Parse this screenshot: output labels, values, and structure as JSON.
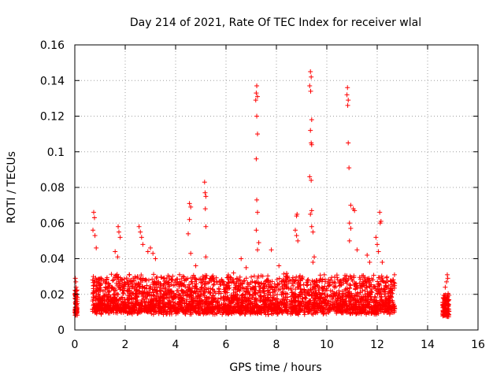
{
  "chart_data": {
    "type": "scatter",
    "title": "Day 214 of 2021, Rate Of TEC Index for receiver wlal",
    "xlabel": "GPS time / hours",
    "ylabel": "ROTI / TECUs",
    "xlim": [
      0,
      16
    ],
    "ylim": [
      0,
      0.16
    ],
    "xticks": [
      0,
      2,
      4,
      6,
      8,
      10,
      12,
      14,
      16
    ],
    "yticks": [
      0,
      0.02,
      0.04,
      0.06,
      0.08,
      0.1,
      0.12,
      0.14,
      0.16
    ],
    "xtick_labels": [
      "0",
      "2",
      "4",
      "6",
      "8",
      "10",
      "12",
      "14",
      "16"
    ],
    "ytick_labels": [
      "0",
      "0.02",
      "0.04",
      "0.06",
      "0.08",
      "0.1",
      "0.12",
      "0.14",
      "0.16"
    ],
    "grid": true,
    "marker": "+",
    "color": "#ff0000",
    "series": [
      {
        "name": "ROTI",
        "segments": [
          {
            "x_start": 0.0,
            "x_end": 0.1,
            "median": 0.01,
            "spread": 0.01
          },
          {
            "x_start": 0.7,
            "x_end": 12.7,
            "median": 0.012,
            "spread": 0.015
          },
          {
            "x_start": 14.6,
            "x_end": 14.85,
            "median": 0.009,
            "spread": 0.008
          }
        ],
        "notable_points": [
          {
            "x": 0.02,
            "y": 0.029
          },
          {
            "x": 0.04,
            "y": 0.027
          },
          {
            "x": 0.05,
            "y": 0.024
          },
          {
            "x": 0.75,
            "y": 0.066
          },
          {
            "x": 0.78,
            "y": 0.063
          },
          {
            "x": 0.72,
            "y": 0.056
          },
          {
            "x": 0.8,
            "y": 0.053
          },
          {
            "x": 0.85,
            "y": 0.046
          },
          {
            "x": 1.6,
            "y": 0.044
          },
          {
            "x": 1.7,
            "y": 0.041
          },
          {
            "x": 1.72,
            "y": 0.058
          },
          {
            "x": 1.75,
            "y": 0.055
          },
          {
            "x": 1.8,
            "y": 0.052
          },
          {
            "x": 2.55,
            "y": 0.058
          },
          {
            "x": 2.6,
            "y": 0.055
          },
          {
            "x": 2.65,
            "y": 0.052
          },
          {
            "x": 2.7,
            "y": 0.048
          },
          {
            "x": 2.9,
            "y": 0.044
          },
          {
            "x": 3.0,
            "y": 0.046
          },
          {
            "x": 3.1,
            "y": 0.043
          },
          {
            "x": 3.2,
            "y": 0.04
          },
          {
            "x": 4.55,
            "y": 0.071
          },
          {
            "x": 4.6,
            "y": 0.069
          },
          {
            "x": 4.55,
            "y": 0.062
          },
          {
            "x": 4.5,
            "y": 0.054
          },
          {
            "x": 4.6,
            "y": 0.043
          },
          {
            "x": 4.8,
            "y": 0.036
          },
          {
            "x": 5.15,
            "y": 0.083
          },
          {
            "x": 5.17,
            "y": 0.077
          },
          {
            "x": 5.2,
            "y": 0.075
          },
          {
            "x": 5.18,
            "y": 0.068
          },
          {
            "x": 5.2,
            "y": 0.058
          },
          {
            "x": 5.2,
            "y": 0.041
          },
          {
            "x": 6.3,
            "y": 0.032
          },
          {
            "x": 6.6,
            "y": 0.04
          },
          {
            "x": 6.8,
            "y": 0.035
          },
          {
            "x": 7.22,
            "y": 0.137
          },
          {
            "x": 7.2,
            "y": 0.133
          },
          {
            "x": 7.25,
            "y": 0.131
          },
          {
            "x": 7.18,
            "y": 0.129
          },
          {
            "x": 7.22,
            "y": 0.12
          },
          {
            "x": 7.25,
            "y": 0.11
          },
          {
            "x": 7.2,
            "y": 0.096
          },
          {
            "x": 7.22,
            "y": 0.073
          },
          {
            "x": 7.25,
            "y": 0.066
          },
          {
            "x": 7.2,
            "y": 0.056
          },
          {
            "x": 7.3,
            "y": 0.049
          },
          {
            "x": 7.25,
            "y": 0.045
          },
          {
            "x": 7.8,
            "y": 0.045
          },
          {
            "x": 8.1,
            "y": 0.036
          },
          {
            "x": 8.8,
            "y": 0.064
          },
          {
            "x": 8.82,
            "y": 0.065
          },
          {
            "x": 8.75,
            "y": 0.056
          },
          {
            "x": 8.8,
            "y": 0.053
          },
          {
            "x": 8.85,
            "y": 0.05
          },
          {
            "x": 9.35,
            "y": 0.145
          },
          {
            "x": 9.38,
            "y": 0.142
          },
          {
            "x": 9.32,
            "y": 0.137
          },
          {
            "x": 9.36,
            "y": 0.134
          },
          {
            "x": 9.4,
            "y": 0.118
          },
          {
            "x": 9.35,
            "y": 0.112
          },
          {
            "x": 9.38,
            "y": 0.105
          },
          {
            "x": 9.4,
            "y": 0.104
          },
          {
            "x": 9.32,
            "y": 0.086
          },
          {
            "x": 9.38,
            "y": 0.084
          },
          {
            "x": 9.4,
            "y": 0.067
          },
          {
            "x": 9.35,
            "y": 0.065
          },
          {
            "x": 9.4,
            "y": 0.058
          },
          {
            "x": 9.45,
            "y": 0.055
          },
          {
            "x": 9.5,
            "y": 0.041
          },
          {
            "x": 9.45,
            "y": 0.038
          },
          {
            "x": 9.9,
            "y": 0.031
          },
          {
            "x": 10.82,
            "y": 0.136
          },
          {
            "x": 10.8,
            "y": 0.132
          },
          {
            "x": 10.85,
            "y": 0.129
          },
          {
            "x": 10.83,
            "y": 0.126
          },
          {
            "x": 10.85,
            "y": 0.105
          },
          {
            "x": 10.88,
            "y": 0.091
          },
          {
            "x": 10.95,
            "y": 0.07
          },
          {
            "x": 11.05,
            "y": 0.068
          },
          {
            "x": 11.1,
            "y": 0.067
          },
          {
            "x": 10.9,
            "y": 0.06
          },
          {
            "x": 10.95,
            "y": 0.057
          },
          {
            "x": 10.9,
            "y": 0.05
          },
          {
            "x": 11.2,
            "y": 0.045
          },
          {
            "x": 11.6,
            "y": 0.042
          },
          {
            "x": 11.7,
            "y": 0.038
          },
          {
            "x": 12.1,
            "y": 0.066
          },
          {
            "x": 12.15,
            "y": 0.061
          },
          {
            "x": 12.12,
            "y": 0.06
          },
          {
            "x": 11.95,
            "y": 0.052
          },
          {
            "x": 12.0,
            "y": 0.048
          },
          {
            "x": 12.05,
            "y": 0.044
          },
          {
            "x": 12.2,
            "y": 0.038
          },
          {
            "x": 14.78,
            "y": 0.031
          },
          {
            "x": 14.8,
            "y": 0.029
          },
          {
            "x": 14.75,
            "y": 0.027
          },
          {
            "x": 14.7,
            "y": 0.024
          }
        ]
      }
    ]
  }
}
